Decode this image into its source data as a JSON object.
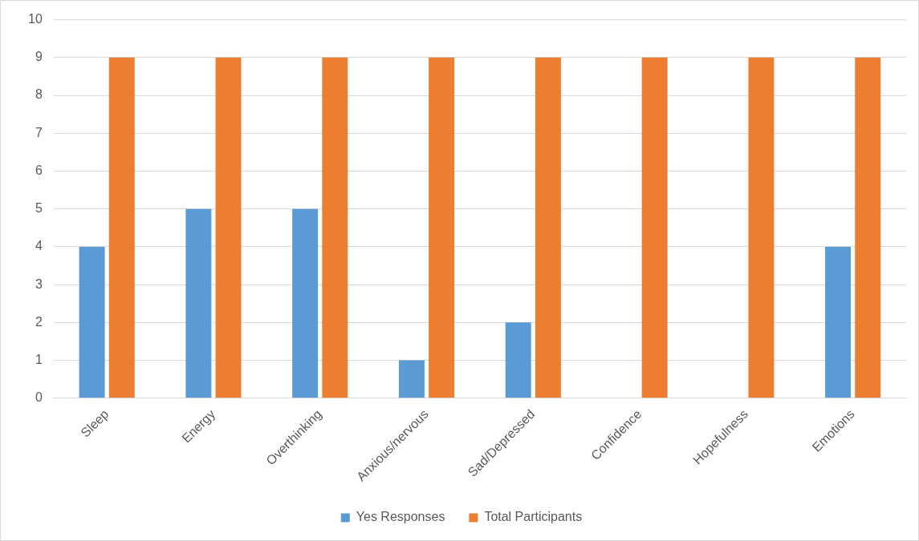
{
  "chart_data": {
    "type": "bar",
    "categories": [
      "Sleep",
      "Energy",
      "Overthinking",
      "Anxious/nervous",
      "Sad/Depressed",
      "Confidence",
      "Hopefulness",
      "Emotions"
    ],
    "series": [
      {
        "name": "Yes Responses",
        "color": "#5b9bd5",
        "values": [
          4,
          5,
          5,
          1,
          2,
          0,
          0,
          4
        ]
      },
      {
        "name": "Total Participants",
        "color": "#ed7d31",
        "values": [
          9,
          9,
          9,
          9,
          9,
          9,
          9,
          9
        ]
      }
    ],
    "ylim": [
      0,
      10
    ],
    "yticks": [
      0,
      1,
      2,
      3,
      4,
      5,
      6,
      7,
      8,
      9,
      10
    ],
    "grid": "y",
    "legend": "bottom"
  }
}
